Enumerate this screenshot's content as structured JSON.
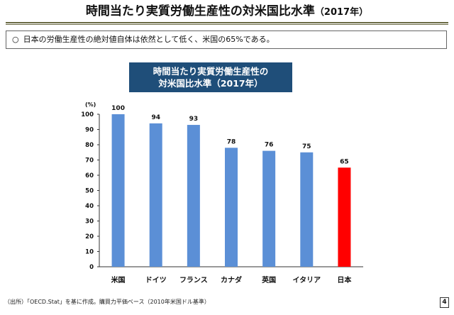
{
  "page": {
    "title_main": "時間当たり実質労働生産性の対米国比水準",
    "title_sub": "（2017年）",
    "note_mark": "○",
    "note_text": "日本の労働生産性の絶対値自体は依然として低く、米国の65%である。",
    "source": "（出所）「OECD.Stat」を基に作成。購買力平価ベース（2010年米国ドル基準）",
    "page_number": "4"
  },
  "chart_data": {
    "type": "bar",
    "title_lines": [
      "時間当たり実質労働生産性の",
      "対米国比水準（2017年）"
    ],
    "ylabel": "(%)",
    "ylim": [
      0,
      100
    ],
    "yticks": [
      0,
      10,
      20,
      30,
      40,
      50,
      60,
      70,
      80,
      90,
      100
    ],
    "categories": [
      "米国",
      "ドイツ",
      "フランス",
      "カナダ",
      "英国",
      "イタリア",
      "日本"
    ],
    "values": [
      100,
      94,
      93,
      78,
      76,
      75,
      65
    ],
    "colors": [
      "#5b8fd6",
      "#5b8fd6",
      "#5b8fd6",
      "#5b8fd6",
      "#5b8fd6",
      "#5b8fd6",
      "#ff0000"
    ],
    "grid": false
  }
}
